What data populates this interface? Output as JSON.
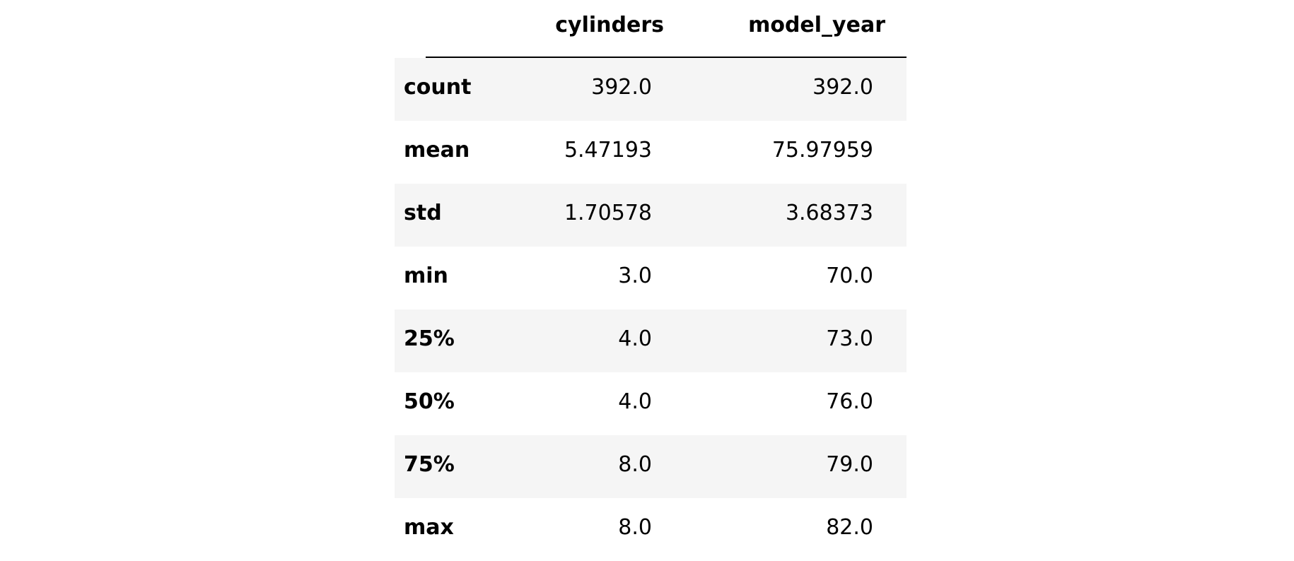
{
  "columns": [
    "cylinders",
    "model_year"
  ],
  "rows": [
    {
      "label": "count",
      "cylinders": "392.0",
      "model_year": "392.0"
    },
    {
      "label": "mean",
      "cylinders": "5.47193",
      "model_year": "75.97959"
    },
    {
      "label": "std",
      "cylinders": "1.70578",
      "model_year": "3.68373"
    },
    {
      "label": "min",
      "cylinders": "3.0",
      "model_year": "70.0"
    },
    {
      "label": "25%",
      "cylinders": "4.0",
      "model_year": "73.0"
    },
    {
      "label": "50%",
      "cylinders": "4.0",
      "model_year": "76.0"
    },
    {
      "label": "75%",
      "cylinders": "8.0",
      "model_year": "79.0"
    },
    {
      "label": "max",
      "cylinders": "8.0",
      "model_year": "82.0"
    }
  ],
  "colors": {
    "stripe": "#f5f5f5",
    "text": "#000000"
  }
}
